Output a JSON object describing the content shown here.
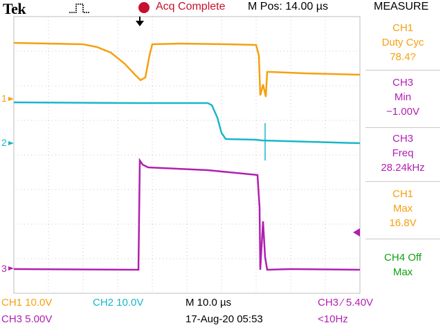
{
  "header": {
    "brand": "Tek",
    "trigger_status": "Acq Complete",
    "position": "M Pos: 14.00 µs",
    "pulse_icon": "pulse-waveform-icon",
    "record_icon": "acquisition-status-dot",
    "trigger_marker_icon": "trigger-position-arrow-icon"
  },
  "channel_markers": {
    "ch1": "1",
    "ch2": "2",
    "ch3": "3"
  },
  "measure": {
    "title": "MEASURE",
    "items": [
      {
        "source": "CH1",
        "name": "Duty Cyc",
        "value": "78.4?",
        "color": "#f5a00f"
      },
      {
        "source": "CH3",
        "name": "Min",
        "value": "−1.00V",
        "color": "#b01fb0"
      },
      {
        "source": "CH3",
        "name": "Freq",
        "value": "28.24kHz",
        "color": "#b01fb0"
      },
      {
        "source": "CH1",
        "name": "Max",
        "value": "16.8V",
        "color": "#f5a00f"
      },
      {
        "source": "CH4 Off",
        "name": "Max",
        "value": "",
        "color": "#11a011"
      }
    ]
  },
  "footer": {
    "ch1_scale": "CH1  10.0V",
    "ch2_scale": "CH2  10.0V",
    "timebase": "M 10.0 µs",
    "trigger": "CH3 ∕ 5.40V",
    "ch3_scale": "CH3  5.00V",
    "date_time": "17-Aug-20 05:53",
    "trigger_freq": "<10Hz"
  },
  "colors": {
    "ch1": "#f5a00f",
    "ch2": "#19b6c8",
    "ch3": "#b01fb0",
    "ch4": "#11a011",
    "accent": "#c8102e"
  }
}
